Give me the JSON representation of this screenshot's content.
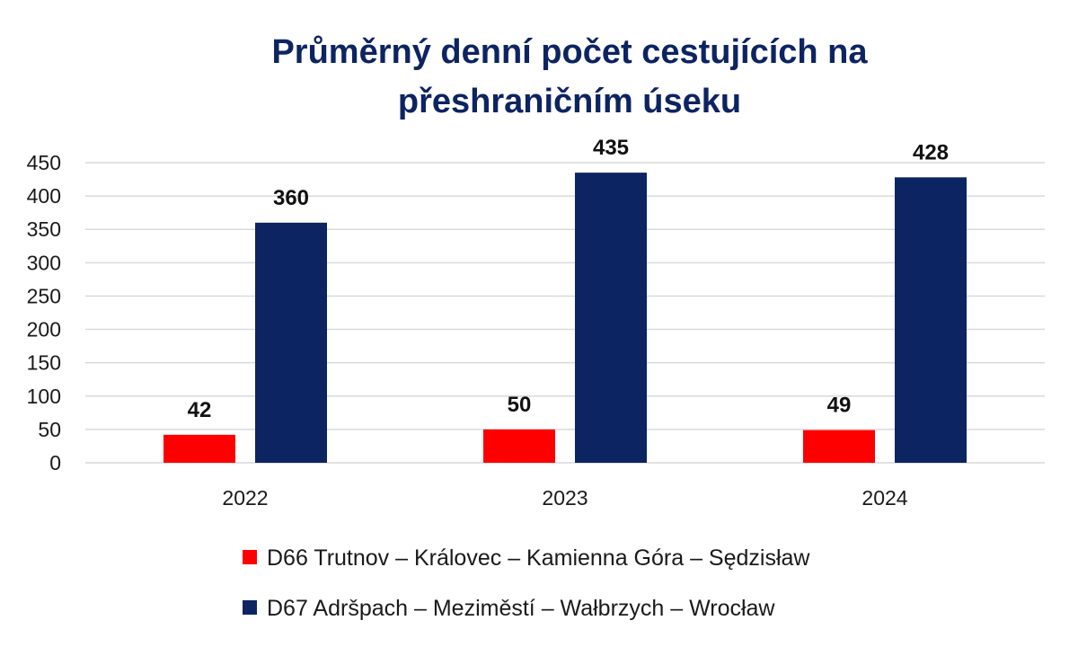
{
  "chart_data": {
    "type": "bar",
    "title": "Průměrný denní počet cestujících na přeshraničním úseku",
    "title_lines": [
      "Průměrný denní počet cestujících na",
      "přeshraničním úseku"
    ],
    "categories": [
      "2022",
      "2023",
      "2024"
    ],
    "series": [
      {
        "name": "D66 Trutnov – Královec – Kamienna Góra – Sędzisław",
        "values": [
          42,
          50,
          49
        ],
        "color": "#ff0000"
      },
      {
        "name": "D67 Adršpach – Meziměstí – Wałbrzych – Wrocław",
        "values": [
          360,
          435,
          428
        ],
        "color": "#0d2462"
      }
    ],
    "ylim": [
      0,
      450
    ],
    "yticks": [
      0,
      50,
      100,
      150,
      200,
      250,
      300,
      350,
      400,
      450
    ],
    "xlabel": "",
    "ylabel": "",
    "grid": true,
    "data_labels": true,
    "legend_position": "bottom",
    "colors": {
      "title": "#0d2462",
      "grid": "#d9d9d9"
    }
  }
}
